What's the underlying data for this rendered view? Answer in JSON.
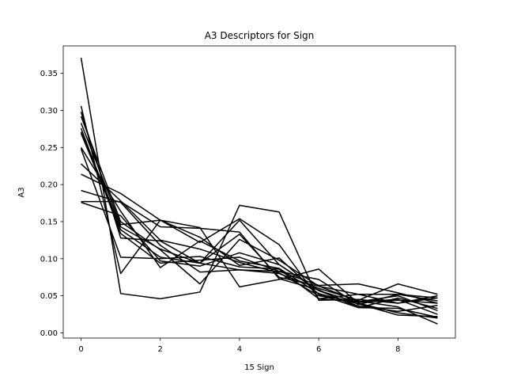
{
  "chart_data": {
    "type": "line",
    "title": "A3 Descriptors for Sign",
    "xlabel": "15 Sign",
    "ylabel": "A3",
    "xlim": [
      -0.45,
      9.45
    ],
    "ylim": [
      -0.007,
      0.387
    ],
    "xticks": [
      0,
      2,
      4,
      6,
      8
    ],
    "yticks": [
      0.0,
      0.05,
      0.1,
      0.15,
      0.2,
      0.25,
      0.3,
      0.35
    ],
    "ytick_labels": [
      "0.00",
      "0.05",
      "0.10",
      "0.15",
      "0.20",
      "0.25",
      "0.30",
      "0.35"
    ],
    "grid": false,
    "legend": "none",
    "line_color": "#000000",
    "x": [
      0,
      1,
      2,
      3,
      4,
      5,
      6,
      7,
      8,
      9
    ],
    "series": [
      {
        "values": [
          0.371,
          0.053,
          0.046,
          0.055,
          0.172,
          0.163,
          0.044,
          0.045,
          0.04,
          0.047
        ]
      },
      {
        "values": [
          0.306,
          0.08,
          0.152,
          0.142,
          0.062,
          0.072,
          0.086,
          0.04,
          0.027,
          0.02
        ]
      },
      {
        "values": [
          0.298,
          0.128,
          0.124,
          0.094,
          0.085,
          0.083,
          0.064,
          0.066,
          0.054,
          0.04
        ]
      },
      {
        "values": [
          0.292,
          0.15,
          0.112,
          0.066,
          0.126,
          0.098,
          0.063,
          0.043,
          0.035,
          0.012
        ]
      },
      {
        "values": [
          0.283,
          0.146,
          0.152,
          0.122,
          0.154,
          0.119,
          0.046,
          0.052,
          0.052,
          0.047
        ]
      },
      {
        "values": [
          0.276,
          0.134,
          0.094,
          0.098,
          0.102,
          0.083,
          0.072,
          0.038,
          0.052,
          0.043
        ]
      },
      {
        "values": [
          0.271,
          0.143,
          0.113,
          0.094,
          0.133,
          0.075,
          0.063,
          0.052,
          0.04,
          0.05
        ]
      },
      {
        "values": [
          0.25,
          0.164,
          0.088,
          0.124,
          0.097,
          0.087,
          0.053,
          0.039,
          0.024,
          0.022
        ]
      },
      {
        "values": [
          0.248,
          0.102,
          0.1,
          0.103,
          0.089,
          0.086,
          0.046,
          0.042,
          0.05,
          0.03
        ]
      },
      {
        "values": [
          0.228,
          0.178,
          0.125,
          0.113,
          0.095,
          0.081,
          0.05,
          0.042,
          0.045,
          0.025
        ]
      },
      {
        "values": [
          0.214,
          0.188,
          0.152,
          0.129,
          0.091,
          0.101,
          0.052,
          0.034,
          0.033,
          0.021
        ]
      },
      {
        "values": [
          0.192,
          0.176,
          0.118,
          0.082,
          0.085,
          0.08,
          0.06,
          0.044,
          0.066,
          0.052
        ]
      },
      {
        "values": [
          0.177,
          0.177,
          0.143,
          0.141,
          0.136,
          0.073,
          0.058,
          0.034,
          0.047,
          0.033
        ]
      },
      {
        "values": [
          0.176,
          0.158,
          0.097,
          0.09,
          0.108,
          0.092,
          0.057,
          0.036,
          0.029,
          0.037
        ]
      },
      {
        "values": [
          0.269,
          0.139,
          0.102,
          0.094,
          0.152,
          0.092,
          0.057,
          0.041,
          0.044,
          0.04
        ]
      }
    ]
  }
}
